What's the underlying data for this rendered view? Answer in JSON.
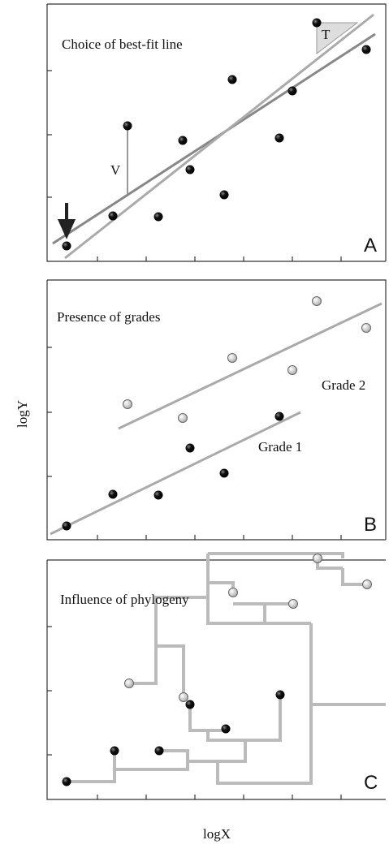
{
  "panels": [
    {
      "title": "Choice of best-fit line",
      "letter": "A",
      "labels": [
        "V",
        "T"
      ]
    },
    {
      "title": "Presence of grades",
      "letter": "B",
      "labels": [
        "Grade 2",
        "Grade 1"
      ]
    },
    {
      "title": "Influence of phylogeny",
      "letter": "C"
    }
  ],
  "axis": {
    "y_label": "logY",
    "x_label": "logX"
  }
}
